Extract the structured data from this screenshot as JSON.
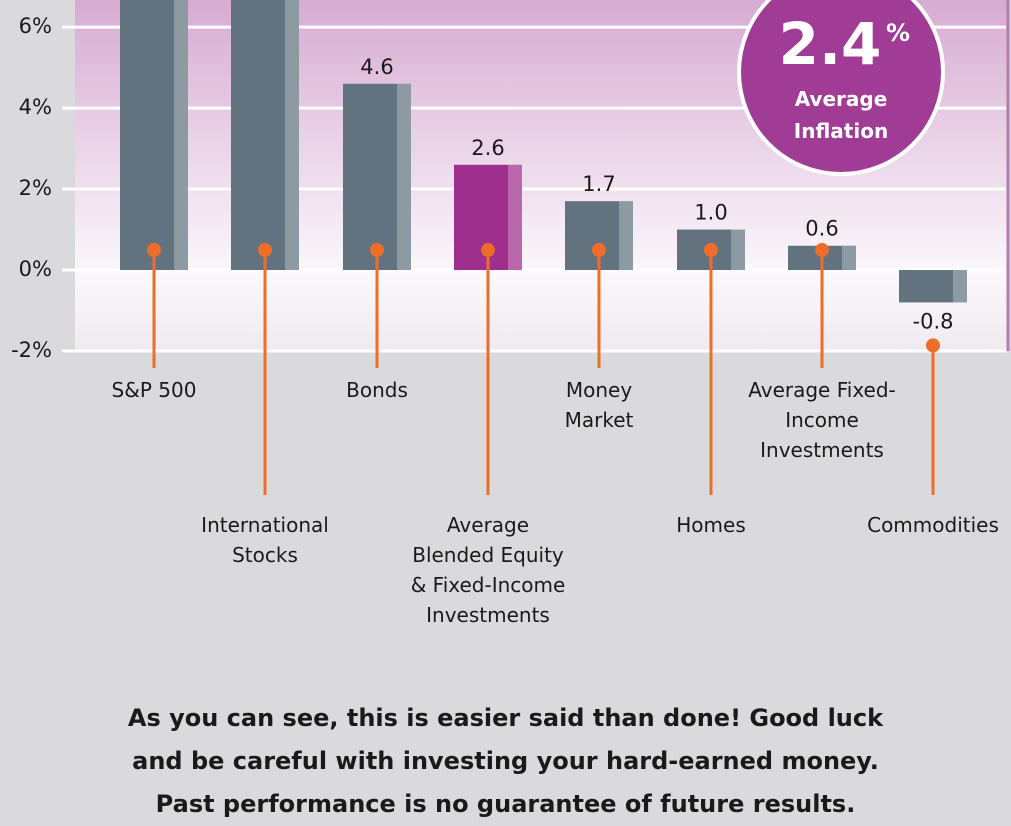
{
  "chart_data": {
    "type": "bar",
    "categories": [
      "S&P 500",
      "International Stocks",
      "Bonds",
      "Average Blended Equity & Fixed-Income Investments",
      "Money Market",
      "Homes",
      "Average Fixed-Income Investments",
      "Commodities"
    ],
    "values": [
      7.2,
      7.0,
      4.6,
      2.6,
      1.7,
      1.0,
      0.6,
      -0.8
    ],
    "value_labels": [
      null,
      null,
      "4.6",
      "2.6",
      "1.7",
      "1.0",
      "0.6",
      "-0.8"
    ],
    "colors": [
      "#62737f",
      "#62737f",
      "#62737f",
      "#9e2f8c",
      "#62737f",
      "#62737f",
      "#62737f",
      "#62737f"
    ],
    "ylim": [
      -2,
      6.67
    ],
    "yticks": [
      {
        "value": -2,
        "label": "-2%"
      },
      {
        "value": 0,
        "label": "0%"
      },
      {
        "value": 2,
        "label": "2%"
      },
      {
        "value": 4,
        "label": "4%"
      },
      {
        "value": 6,
        "label": "6%"
      }
    ],
    "grid": true,
    "annotation": {
      "value": "2.4",
      "unit": "%",
      "text": "Average Inflation"
    }
  },
  "footer": [
    "As you can see, this is easier said than done! Good luck",
    "and be careful with investing your hard-earned money.",
    "Past performance is no guarantee of future results."
  ]
}
